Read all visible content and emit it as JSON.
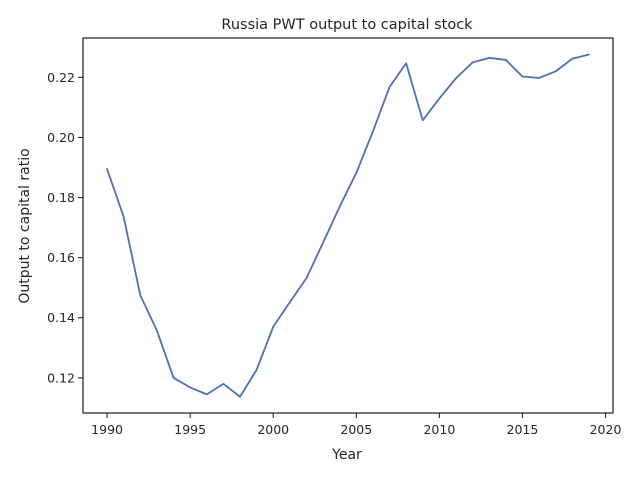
{
  "chart_data": {
    "type": "line",
    "title": "Russia PWT output to capital stock",
    "xlabel": "Year",
    "ylabel": "Output to capital ratio",
    "xlim": [
      1988.55,
      2020.45
    ],
    "ylim": [
      0.1083,
      0.2331
    ],
    "xticks": [
      1990,
      1995,
      2000,
      2005,
      2010,
      2015,
      2020
    ],
    "yticks": [
      0.12,
      0.14,
      0.16,
      0.18,
      0.2,
      0.22
    ],
    "ytick_labels": [
      "0.12",
      "0.14",
      "0.16",
      "0.18",
      "0.20",
      "0.22"
    ],
    "grid": false,
    "line_color": "#4c72b0",
    "series": [
      {
        "x": [
          1990,
          1991,
          1992,
          1993,
          1994,
          1995,
          1996,
          1997,
          1998,
          1999,
          2000,
          2001,
          2002,
          2003,
          2004,
          2005,
          2006,
          2007,
          2008,
          2009,
          2010,
          2011,
          2012,
          2013,
          2014,
          2015,
          2016,
          2017,
          2018,
          2019
        ],
        "values": [
          0.1895,
          0.1735,
          0.1475,
          0.1357,
          0.12,
          0.1168,
          0.1145,
          0.118,
          0.1137,
          0.1227,
          0.137,
          0.1452,
          0.1532,
          0.165,
          0.177,
          0.1882,
          0.202,
          0.2168,
          0.2247,
          0.2057,
          0.213,
          0.2197,
          0.225,
          0.2265,
          0.2258,
          0.2203,
          0.2198,
          0.222,
          0.2262,
          0.2276
        ]
      }
    ]
  }
}
